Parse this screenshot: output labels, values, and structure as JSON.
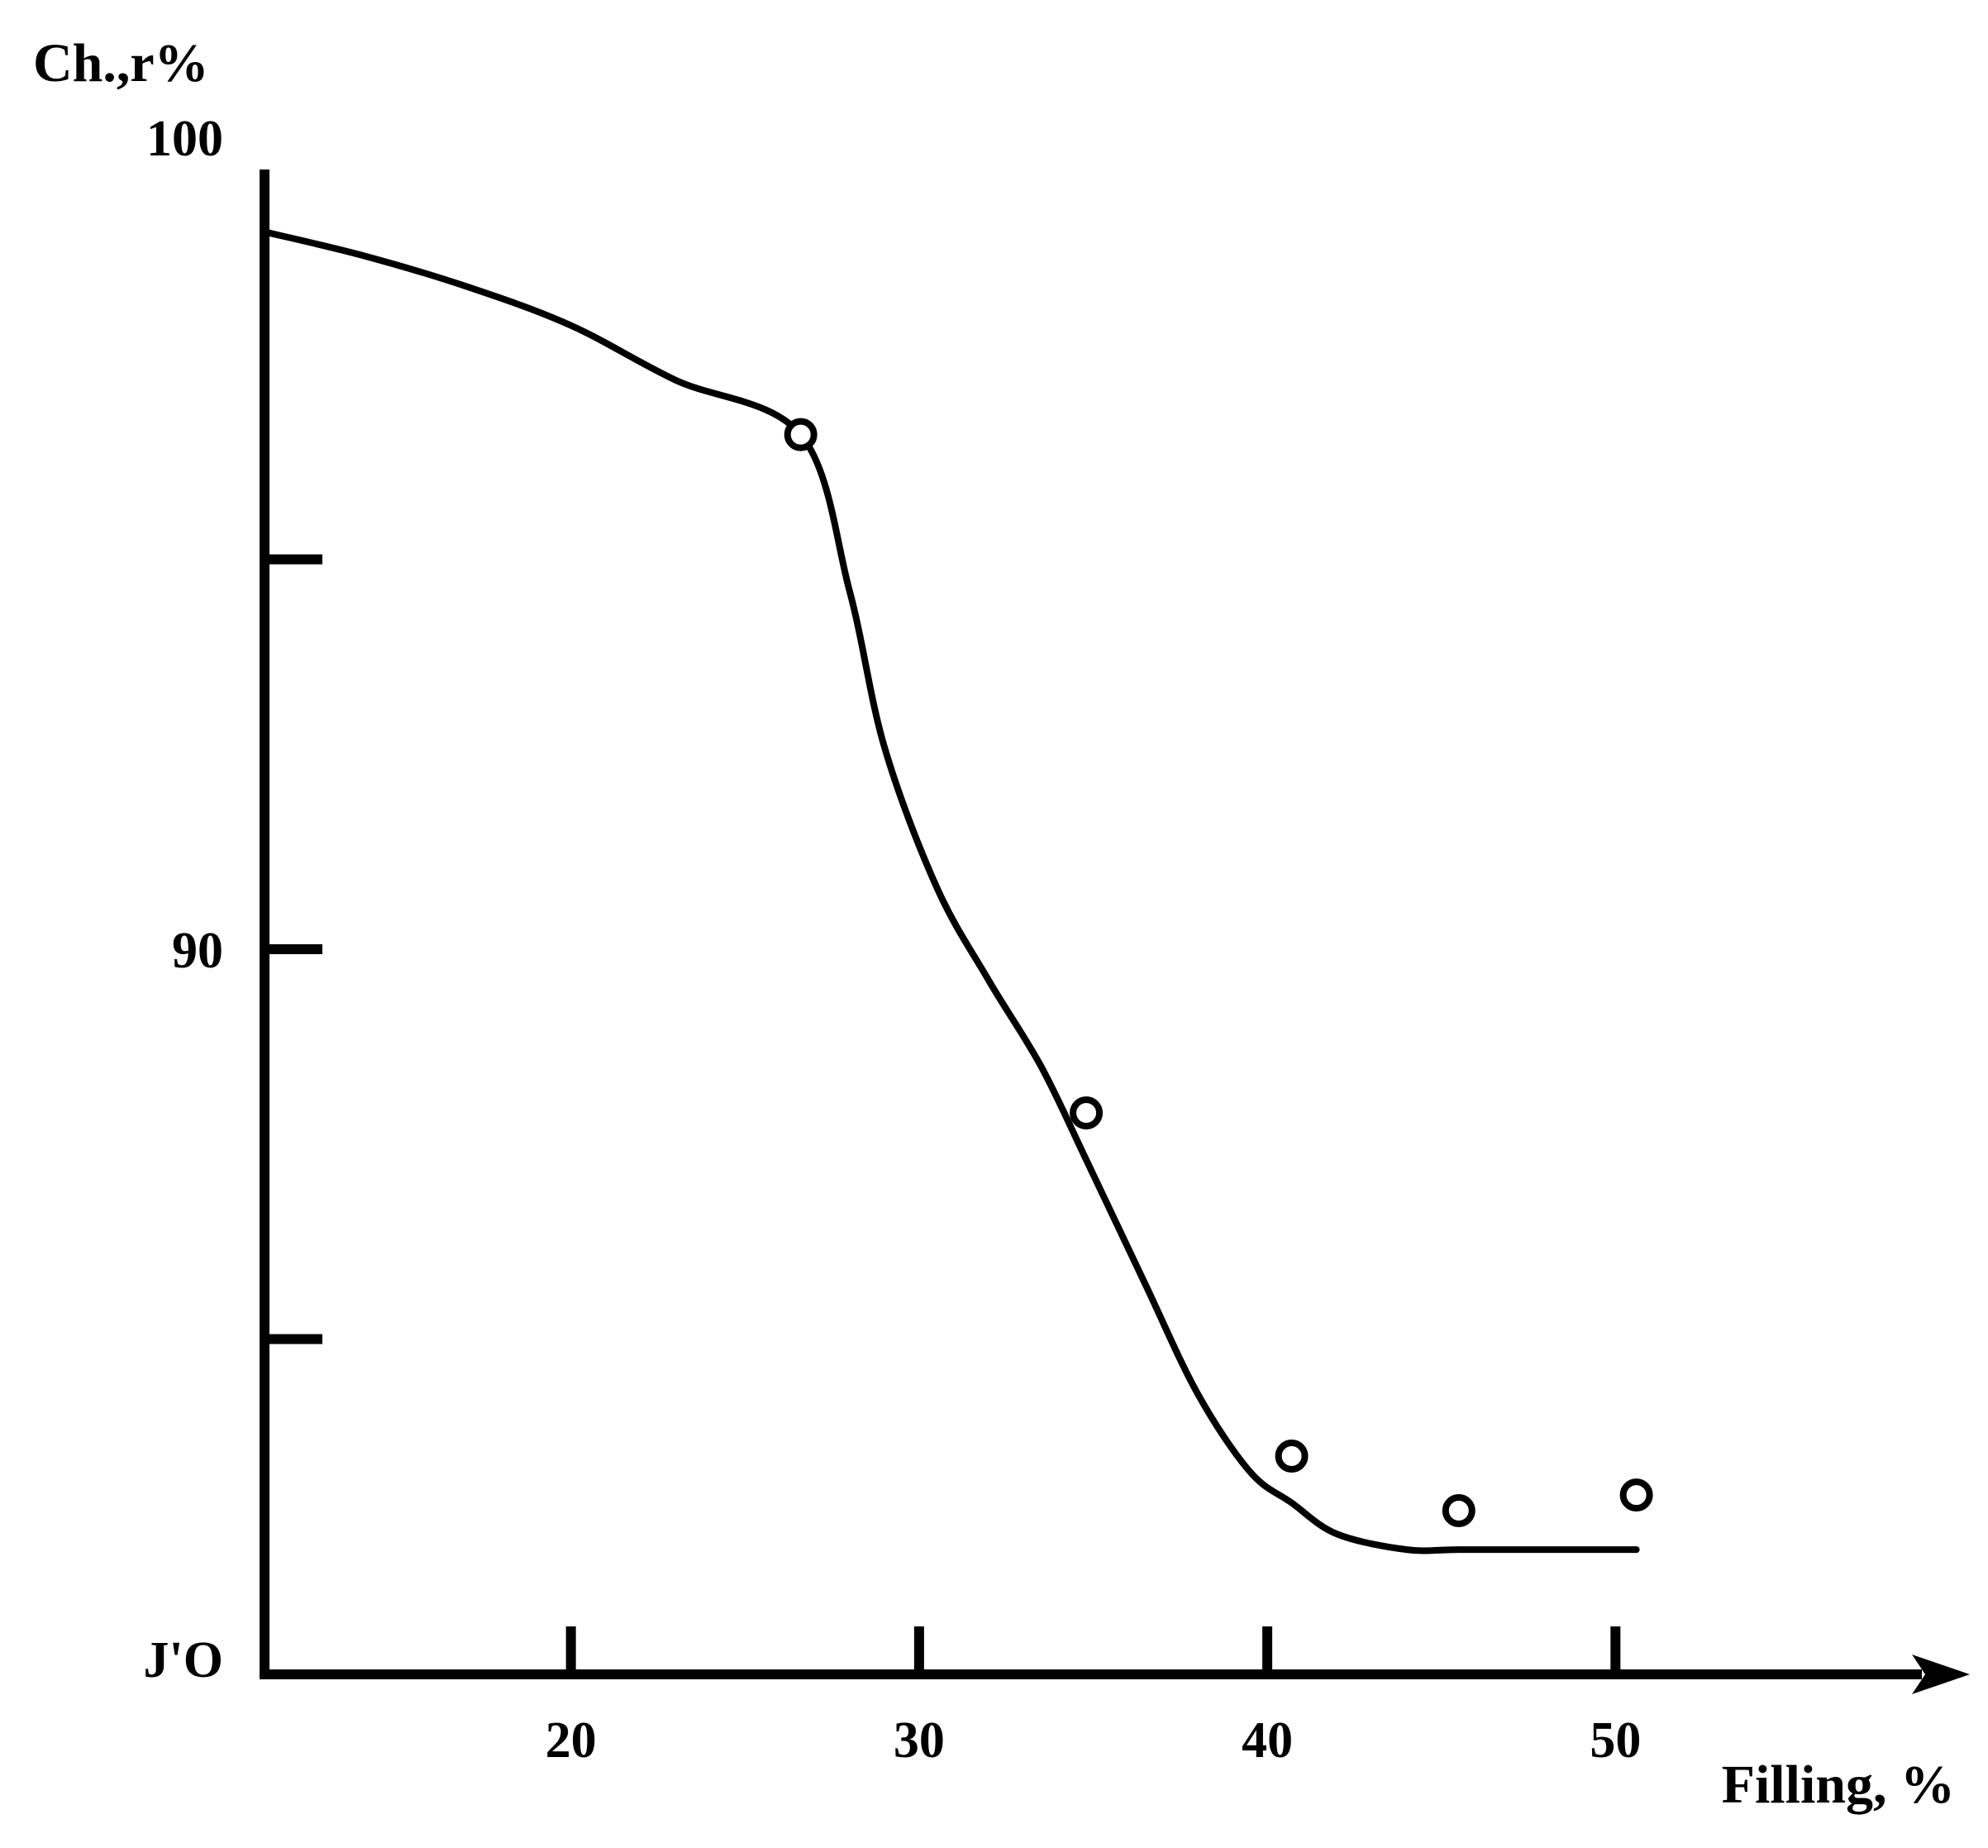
{
  "chart_data": {
    "type": "line",
    "title": "",
    "ylabel": "Ch.,r%",
    "xlabel": "Filling, %",
    "xlim": [
      11.2,
      58.8
    ],
    "ylim": [
      80.7,
      100
    ],
    "x_ticks": [
      20,
      30,
      40,
      50
    ],
    "x_tick_labels": [
      "20",
      "30",
      "40",
      "50"
    ],
    "y_ticks": [
      95,
      90,
      85
    ],
    "y_tick_labels": [
      {
        "value": 100,
        "text": "100"
      },
      {
        "value": 90,
        "text": "90"
      },
      {
        "value": 80.9,
        "text": "J'O"
      }
    ],
    "grid": false,
    "legend": "none",
    "line_color": "#000000",
    "curve": [
      [
        11.2,
        99.2
      ],
      [
        14,
        98.9
      ],
      [
        17,
        98.5
      ],
      [
        20,
        98.0
      ],
      [
        23,
        97.3
      ],
      [
        26.6,
        96.6
      ],
      [
        28,
        94.6
      ],
      [
        29,
        92.6
      ],
      [
        30.5,
        90.8
      ],
      [
        32,
        89.6
      ],
      [
        33.5,
        88.5
      ],
      [
        34.8,
        87.3
      ],
      [
        36.5,
        85.7
      ],
      [
        38,
        84.3
      ],
      [
        39.5,
        83.3
      ],
      [
        40.7,
        82.9
      ],
      [
        42,
        82.5
      ],
      [
        44,
        82.3
      ],
      [
        45.5,
        82.3
      ],
      [
        48,
        82.3
      ],
      [
        50.6,
        82.3
      ]
    ],
    "series": [
      {
        "name": "",
        "markers": "open-circle",
        "x": [
          26.6,
          34.8,
          40.7,
          45.5,
          50.6
        ],
        "y": [
          96.6,
          87.9,
          83.5,
          82.8,
          83.0
        ]
      }
    ]
  }
}
